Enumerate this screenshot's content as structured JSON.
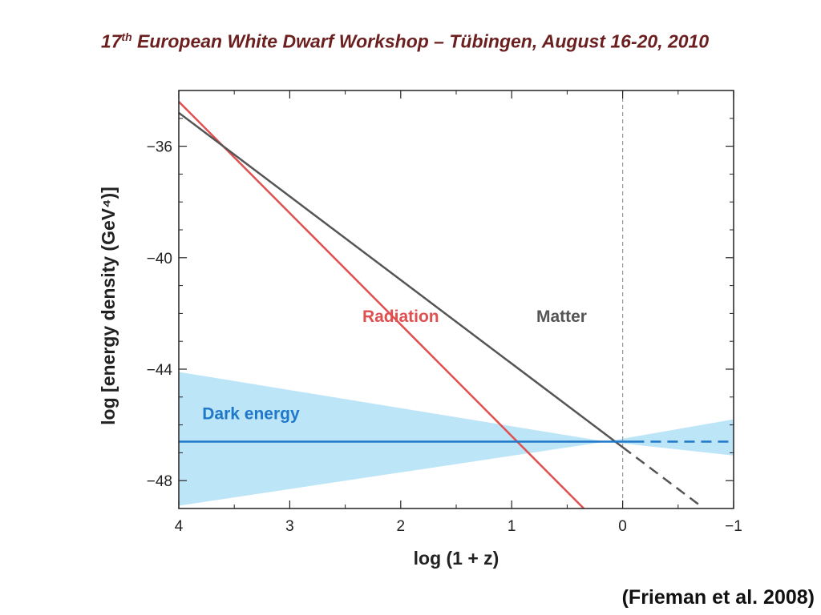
{
  "slide": {
    "header_num": "17",
    "header_sup": "th",
    "header_rest": " European White Dwarf Workshop – Tübingen, August 16-20, 2010",
    "citation": "(Frieman et al. 2008)"
  },
  "colors": {
    "header": "#6b1f1f",
    "radiation": "#e05050",
    "matter": "#555555",
    "dark_energy": "#1f78c8",
    "band": "#bde5f8"
  },
  "chart_data": {
    "type": "line",
    "xlabel": "log (1 + z)",
    "ylabel": "log [energy density (GeV⁴)]",
    "xlim": [
      4,
      -1
    ],
    "ylim": [
      -49,
      -34
    ],
    "x_reversed": true,
    "grid": false,
    "x_ticks": [
      4,
      3,
      2,
      1,
      0,
      -1
    ],
    "x_tick_labels": [
      "4",
      "3",
      "2",
      "1",
      "0",
      "−1"
    ],
    "y_ticks": [
      -36,
      -40,
      -44,
      -48
    ],
    "y_tick_labels": [
      "−36",
      "−40",
      "−44",
      "−48"
    ],
    "vline": {
      "x": 0,
      "style": "dashed"
    },
    "series": [
      {
        "name": "Radiation",
        "label_pos": [
          2.0,
          -42.3
        ],
        "segments": [
          {
            "x": [
              4,
              0.35
            ],
            "y": [
              -34.4,
              -49
            ],
            "style": "solid"
          }
        ]
      },
      {
        "name": "Matter",
        "label_pos": [
          0.55,
          -42.3
        ],
        "segments": [
          {
            "x": [
              4,
              0
            ],
            "y": [
              -34.8,
              -46.8
            ],
            "style": "solid"
          },
          {
            "x": [
              0,
              -0.7
            ],
            "y": [
              -46.8,
              -48.9
            ],
            "style": "dashed"
          }
        ]
      },
      {
        "name": "Dark energy",
        "label_pos": [
          3.35,
          -45.8
        ],
        "segments": [
          {
            "x": [
              4,
              -0.1
            ],
            "y": [
              -46.6,
              -46.6
            ],
            "style": "solid"
          },
          {
            "x": [
              -0.1,
              -1
            ],
            "y": [
              -46.6,
              -46.6
            ],
            "style": "dashed"
          }
        ]
      }
    ],
    "band": {
      "x": [
        4,
        0.15,
        -1
      ],
      "upper": [
        -44.1,
        -46.6,
        -45.8
      ],
      "lower": [
        -48.9,
        -46.6,
        -47.1
      ]
    }
  }
}
